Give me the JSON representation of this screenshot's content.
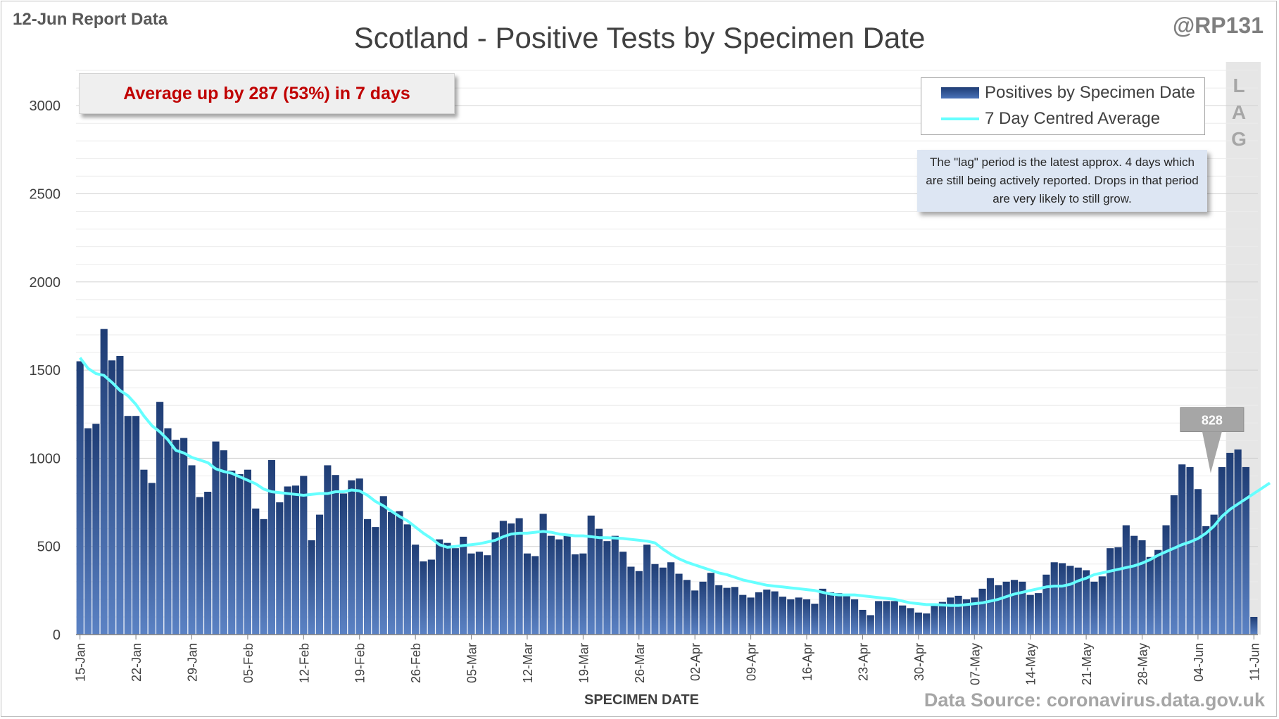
{
  "header": {
    "report_date": "12-Jun Report Data",
    "handle": "@RP131",
    "source": "Data Source: coronavirus.data.gov.uk"
  },
  "callout": {
    "text": "Average up by 287 (53%) in 7 days"
  },
  "lag_note": {
    "letters": [
      "L",
      "A",
      "G"
    ],
    "text": "The \"lag\" period is the latest approx. 4 days which are still being actively reported. Drops in that period are very likely to still grow."
  },
  "colors": {
    "bar_top": "#1f3d75",
    "bar_bottom": "#5b82c4",
    "average_line": "#66ffff",
    "lag_shade": "#e6e6e6",
    "highlight_label": "#a6a6a6"
  },
  "chart_data": {
    "type": "bar",
    "title": "Scotland - Positive Tests by Specimen Date",
    "xlabel": "SPECIMEN DATE",
    "ylabel": "",
    "ylim": [
      0,
      3200
    ],
    "yticks": [
      0,
      500,
      1000,
      1500,
      2000,
      2500,
      3000
    ],
    "grid": true,
    "legend": "top-right",
    "start_date": "15-Jan",
    "xtick_labels": [
      "15-Jan",
      "22-Jan",
      "29-Jan",
      "05-Feb",
      "12-Feb",
      "19-Feb",
      "26-Feb",
      "05-Mar",
      "12-Mar",
      "19-Mar",
      "26-Mar",
      "02-Apr",
      "09-Apr",
      "16-Apr",
      "23-Apr",
      "30-Apr",
      "07-May",
      "14-May",
      "21-May",
      "28-May",
      "04-Jun",
      "11-Jun"
    ],
    "lag_days": 4,
    "highlight": {
      "label": "828",
      "date": "04-Jun",
      "value": 828
    },
    "series": [
      {
        "name": "Positives by Specimen Date",
        "type": "bar",
        "values": [
          1550,
          1170,
          1195,
          1733,
          1555,
          1580,
          1240,
          1240,
          935,
          860,
          1320,
          1170,
          1105,
          1115,
          960,
          780,
          810,
          1095,
          1045,
          930,
          910,
          935,
          715,
          655,
          990,
          750,
          840,
          845,
          900,
          535,
          680,
          960,
          905,
          800,
          875,
          885,
          655,
          610,
          785,
          695,
          700,
          625,
          510,
          415,
          425,
          540,
          520,
          490,
          555,
          460,
          470,
          450,
          580,
          645,
          630,
          660,
          460,
          445,
          685,
          560,
          540,
          570,
          455,
          460,
          675,
          600,
          530,
          560,
          470,
          385,
          360,
          510,
          400,
          380,
          410,
          345,
          310,
          250,
          300,
          350,
          280,
          265,
          270,
          225,
          210,
          240,
          255,
          245,
          215,
          200,
          210,
          200,
          175,
          260,
          240,
          235,
          230,
          200,
          140,
          110,
          190,
          190,
          190,
          165,
          150,
          125,
          120,
          165,
          185,
          210,
          220,
          200,
          210,
          260,
          320,
          280,
          300,
          310,
          300,
          225,
          235,
          340,
          410,
          405,
          390,
          380,
          365,
          300,
          330,
          490,
          495,
          620,
          560,
          535,
          440,
          480,
          620,
          790,
          965,
          950,
          825,
          615,
          680,
          950,
          1030,
          1050,
          950,
          100
        ]
      },
      {
        "name": "7 Day Centred Average",
        "type": "line",
        "values": [
          1570,
          1510,
          1480,
          1470,
          1430,
          1385,
          1355,
          1305,
          1240,
          1185,
          1150,
          1105,
          1045,
          1030,
          1005,
          990,
          975,
          940,
          925,
          915,
          895,
          875,
          855,
          825,
          810,
          805,
          800,
          795,
          790,
          795,
          800,
          800,
          810,
          810,
          820,
          815,
          790,
          755,
          730,
          700,
          670,
          645,
          610,
          575,
          545,
          510,
          495,
          500,
          505,
          510,
          515,
          525,
          535,
          555,
          570,
          575,
          575,
          580,
          585,
          580,
          570,
          565,
          560,
          560,
          555,
          550,
          550,
          548,
          545,
          540,
          535,
          530,
          520,
          485,
          455,
          430,
          410,
          395,
          380,
          365,
          350,
          340,
          325,
          310,
          300,
          290,
          280,
          275,
          270,
          265,
          260,
          255,
          250,
          240,
          230,
          225,
          225,
          225,
          220,
          215,
          210,
          205,
          200,
          190,
          180,
          175,
          170,
          170,
          168,
          165,
          165,
          170,
          175,
          180,
          190,
          200,
          215,
          230,
          240,
          250,
          260,
          270,
          275,
          275,
          285,
          305,
          320,
          340,
          350,
          360,
          370,
          380,
          390,
          405,
          425,
          450,
          470,
          490,
          510,
          525,
          545,
          575,
          615,
          670,
          710,
          740,
          770,
          800,
          830,
          860
        ]
      }
    ]
  }
}
